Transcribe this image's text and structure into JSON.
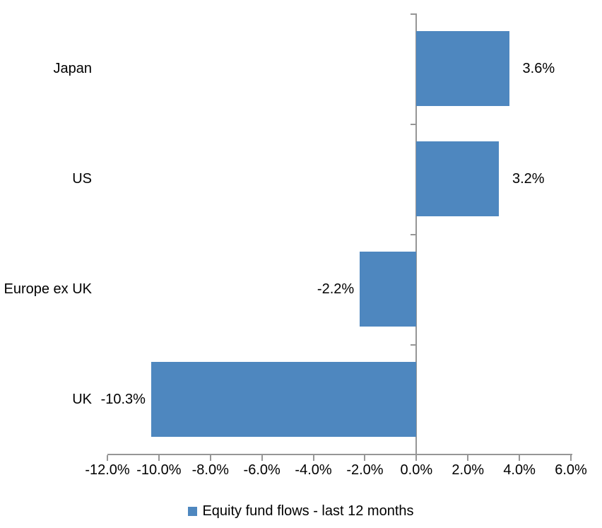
{
  "chart_data": {
    "type": "bar",
    "orientation": "horizontal",
    "title": "",
    "xlabel": "",
    "ylabel": "",
    "categories": [
      "Japan",
      "US",
      "Europe ex UK",
      "UK"
    ],
    "series": [
      {
        "name": "Equity fund flows - last 12 months",
        "values": [
          3.6,
          3.2,
          -2.2,
          -10.3
        ],
        "data_labels": [
          "3.6%",
          "3.2%",
          "-2.2%",
          "-10.3%"
        ]
      }
    ],
    "xlim": [
      -12,
      6
    ],
    "x_tick_values": [
      -12,
      -10,
      -8,
      -6,
      -4,
      -2,
      0,
      2,
      4,
      6
    ],
    "x_tick_labels": [
      "-12.0%",
      "-10.0%",
      "-8.0%",
      "-6.0%",
      "-4.0%",
      "-2.0%",
      "0.0%",
      "2.0%",
      "4.0%",
      "6.0%"
    ],
    "grid": false,
    "legend_position": "bottom",
    "colors": {
      "bar": "#4E87BF",
      "axis": "#969696",
      "text": "#000000",
      "background": "#FFFFFF"
    }
  }
}
